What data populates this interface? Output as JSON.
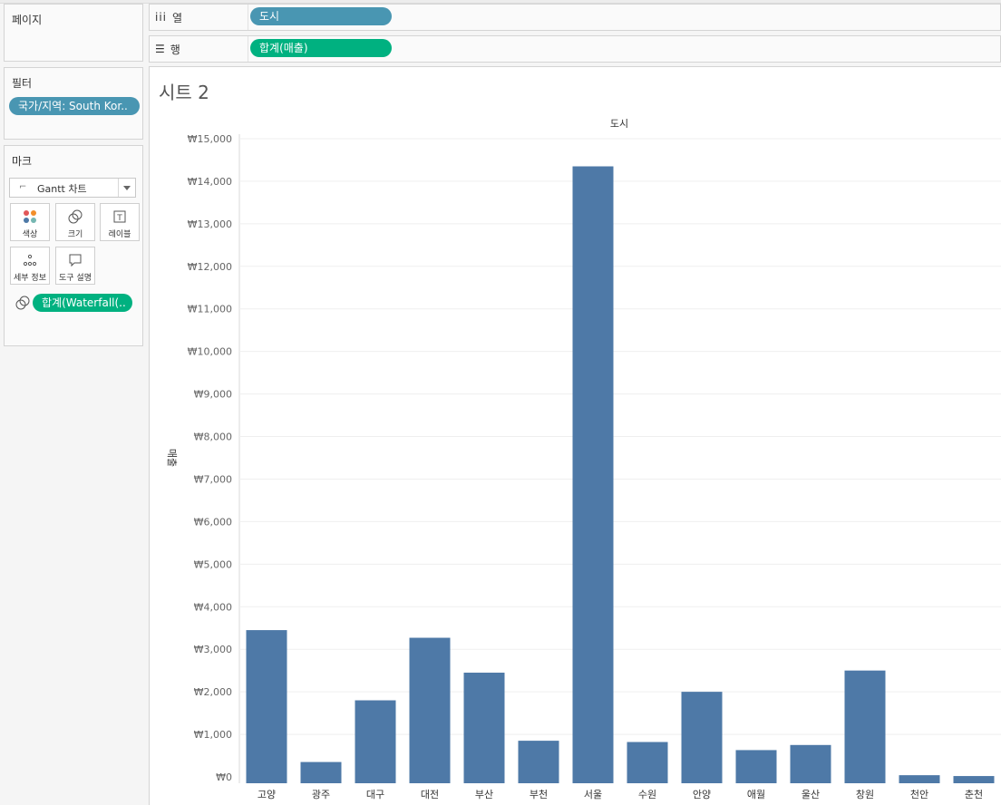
{
  "pages_panel": {
    "title": "페이지"
  },
  "filters_panel": {
    "title": "필터",
    "filter_pill": "국가/지역: South Kor.."
  },
  "marks_panel": {
    "title": "마크",
    "mark_type": "Gantt 차트",
    "buttons": [
      {
        "label": "색상",
        "icon": "color-icon"
      },
      {
        "label": "크기",
        "icon": "size-icon"
      },
      {
        "label": "레이블",
        "icon": "label-icon"
      },
      {
        "label": "세부 정보",
        "icon": "detail-icon"
      },
      {
        "label": "도구 설명",
        "icon": "tooltip-icon"
      }
    ],
    "size_pill": "합계(Waterfall(.."
  },
  "shelves": {
    "columns": {
      "label": "열",
      "pill": "도시"
    },
    "rows": {
      "label": "행",
      "pill": "합계(매출)"
    }
  },
  "sheet": {
    "title": "시트 2"
  },
  "colors": {
    "bar": "#4e79a7",
    "pill_blue": "#4996b2",
    "pill_green": "#00b180"
  },
  "chart_data": {
    "type": "bar",
    "title": "도시",
    "ylabel": "매출",
    "categories": [
      "고양",
      "광주",
      "대구",
      "대전",
      "부산",
      "부천",
      "서울",
      "수원",
      "안양",
      "애월",
      "울산",
      "창원",
      "천안",
      "춘천"
    ],
    "values": [
      3450,
      350,
      1800,
      3270,
      2450,
      850,
      14350,
      820,
      2000,
      630,
      750,
      2500,
      40,
      20
    ],
    "ylim": [
      0,
      15000
    ],
    "yticks": [
      0,
      1000,
      2000,
      3000,
      4000,
      5000,
      6000,
      7000,
      8000,
      9000,
      10000,
      11000,
      12000,
      13000,
      14000,
      15000
    ],
    "ytick_labels": [
      "₩0",
      "₩1,000",
      "₩2,000",
      "₩3,000",
      "₩4,000",
      "₩5,000",
      "₩6,000",
      "₩7,000",
      "₩8,000",
      "₩9,000",
      "₩10,000",
      "₩11,000",
      "₩12,000",
      "₩13,000",
      "₩14,000",
      "₩15,000"
    ],
    "grid": true
  }
}
